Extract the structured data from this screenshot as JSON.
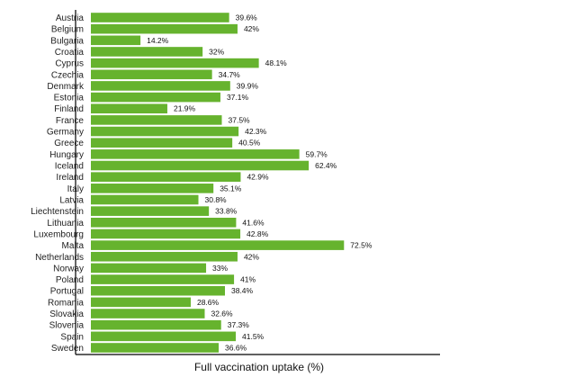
{
  "chart_data": {
    "type": "bar",
    "orientation": "horizontal",
    "title": "",
    "xlabel": "Full vaccination uptake (%)",
    "ylabel": "",
    "xlim": [
      0,
      100
    ],
    "value_suffix": "%",
    "grid": false,
    "legend": "none",
    "bar_color": "#66b32e",
    "categories": [
      "Austria",
      "Belgium",
      "Bulgaria",
      "Croatia",
      "Cyprus",
      "Czechia",
      "Denmark",
      "Estonia",
      "Finland",
      "France",
      "Germany",
      "Greece",
      "Hungary",
      "Iceland",
      "Ireland",
      "Italy",
      "Latvia",
      "Liechtenstein",
      "Lithuania",
      "Luxembourg",
      "Malta",
      "Netherlands",
      "Norway",
      "Poland",
      "Portugal",
      "Romania",
      "Slovakia",
      "Slovenia",
      "Spain",
      "Sweden"
    ],
    "values": [
      39.6,
      42,
      14.2,
      32,
      48.1,
      34.7,
      39.9,
      37.1,
      21.9,
      37.5,
      42.3,
      40.5,
      59.7,
      62.4,
      42.9,
      35.1,
      30.8,
      33.8,
      41.6,
      42.8,
      72.5,
      42,
      33,
      41,
      38.4,
      28.6,
      32.6,
      37.3,
      41.5,
      36.6
    ]
  }
}
